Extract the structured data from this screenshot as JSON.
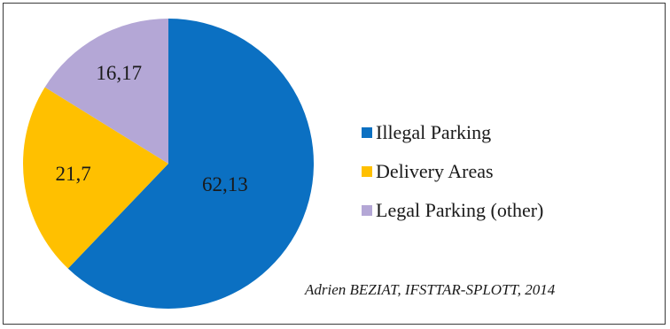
{
  "chart_data": {
    "type": "pie",
    "categories": [
      "Illegal Parking",
      "Delivery Areas",
      "Legal Parking (other)"
    ],
    "values": [
      62.13,
      21.7,
      16.17
    ],
    "value_labels": [
      "62,13",
      "21,7",
      "16,17"
    ],
    "colors": [
      "#0B70C2",
      "#FFC000",
      "#B4A7D6"
    ],
    "start_angle_deg": 0,
    "direction": "clockwise",
    "legend_position": "right",
    "title": ""
  },
  "credit": "Adrien BEZIAT, IFSTTAR-SPLOTT, 2014"
}
